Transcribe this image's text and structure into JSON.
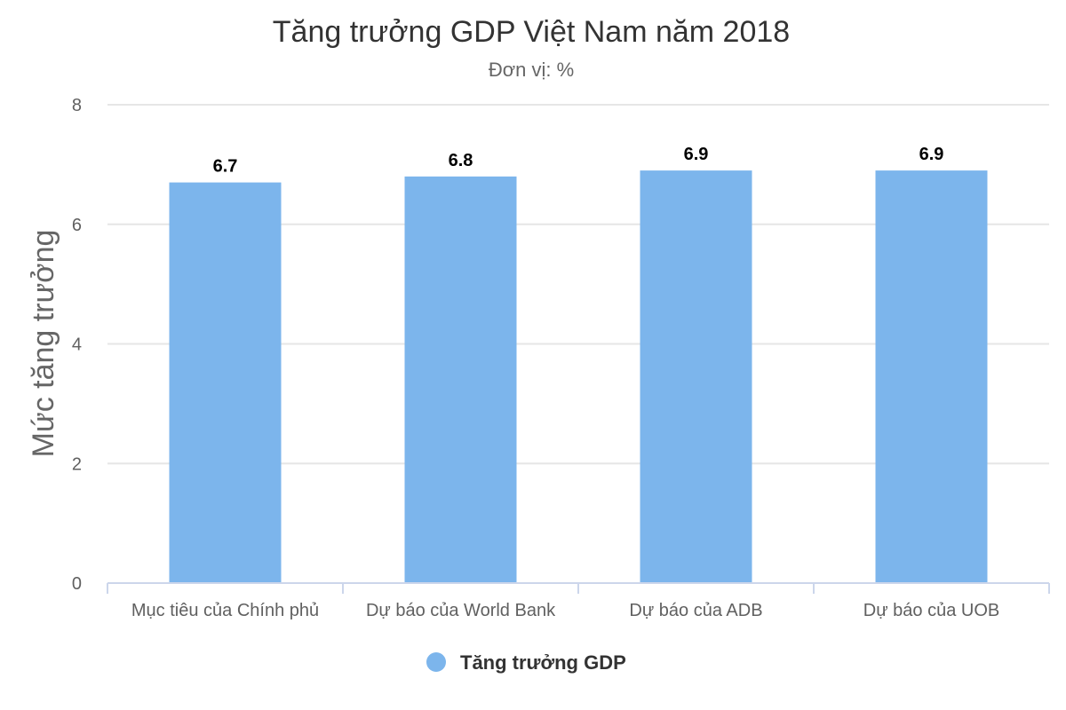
{
  "chart_data": {
    "type": "bar",
    "title": "Tăng trưởng GDP Việt Nam năm 2018",
    "subtitle": "Đơn vị: %",
    "ylabel": "Mức tăng trưởng",
    "xlabel": "",
    "ylim": [
      0,
      8
    ],
    "yticks": [
      "0",
      "2",
      "4",
      "6",
      "8"
    ],
    "categories": [
      "Mục tiêu của Chính phủ",
      "Dự báo của World Bank",
      "Dự báo của ADB",
      "Dự báo của UOB"
    ],
    "series": [
      {
        "name": "Tăng trưởng GDP",
        "values": [
          6.7,
          6.8,
          6.9,
          6.9
        ],
        "labels": [
          "6.7",
          "6.8",
          "6.9",
          "6.9"
        ],
        "color": "#7cb5ec"
      }
    ],
    "grid": true,
    "legend_position": "bottom-center"
  }
}
